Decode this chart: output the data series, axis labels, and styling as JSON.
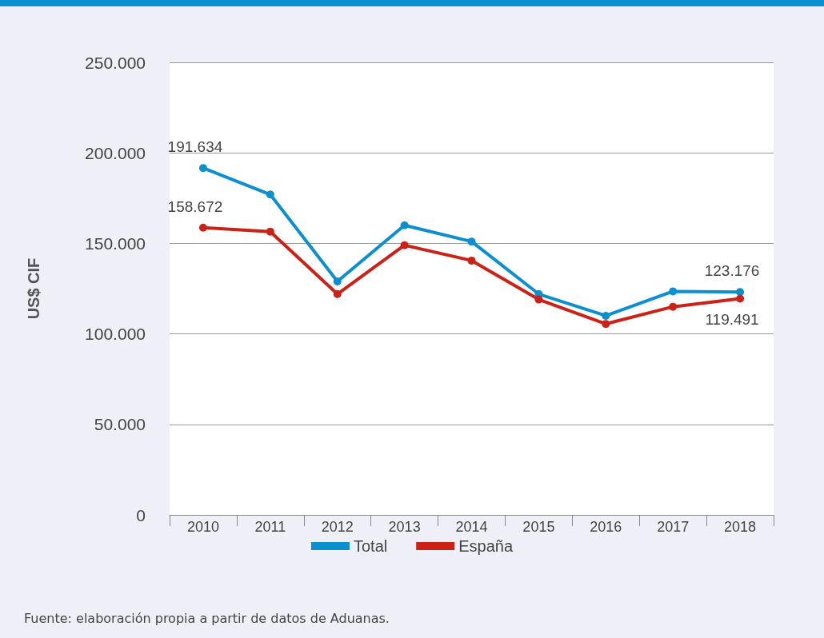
{
  "chart_data": {
    "type": "line",
    "ylabel": "US$ CIF",
    "categories": [
      "2010",
      "2011",
      "2012",
      "2013",
      "2014",
      "2015",
      "2016",
      "2017",
      "2018"
    ],
    "series": [
      {
        "name": "Total",
        "color": "#0a8fd0",
        "values": [
          191634,
          177000,
          129000,
          160000,
          151000,
          122000,
          110000,
          123500,
          123176
        ],
        "value_labels": [
          "191.634",
          null,
          null,
          null,
          null,
          null,
          null,
          null,
          "123.176"
        ]
      },
      {
        "name": "España",
        "color": "#cc2116",
        "values": [
          158672,
          156500,
          122000,
          149000,
          140500,
          119000,
          105500,
          115000,
          119491
        ],
        "value_labels": [
          "158.672",
          null,
          null,
          null,
          null,
          null,
          null,
          null,
          "119.491"
        ]
      }
    ],
    "ylim": [
      0,
      250000
    ],
    "yticks": [
      {
        "value": 0,
        "label": "0"
      },
      {
        "value": 50000,
        "label": "50.000"
      },
      {
        "value": 100000,
        "label": "100.000"
      },
      {
        "value": 150000,
        "label": "150.000"
      },
      {
        "value": 200000,
        "label": "200.000"
      },
      {
        "value": 250000,
        "label": "250.000"
      }
    ],
    "grid": "y",
    "legend": "bottom",
    "marker": "circle",
    "line_style": "solid",
    "annotations": [
      "Fuente: elaboración propia a partir de datos de Aduanas."
    ]
  }
}
